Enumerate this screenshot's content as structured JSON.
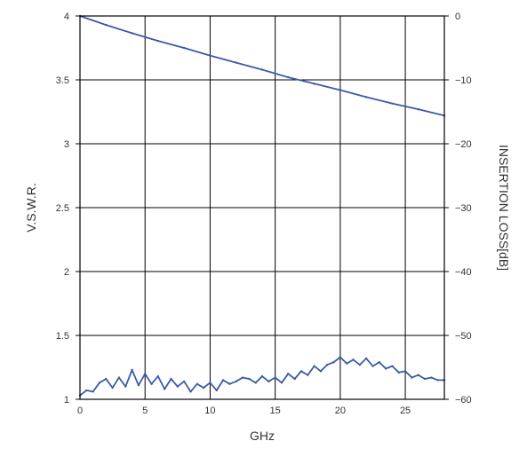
{
  "chart_data": {
    "type": "line",
    "xlabel": "GHz",
    "ylabel_left": "V.S.W.R.",
    "ylabel_right": "INSERTION LOSS[dB]",
    "xlim": [
      0,
      28
    ],
    "ylim_left": [
      1,
      4
    ],
    "ylim_right": [
      -60,
      0
    ],
    "x_ticks": [
      "0",
      "5",
      "10",
      "15",
      "20",
      "25"
    ],
    "y_left_ticks": [
      "1",
      "1.5",
      "2",
      "2.5",
      "3",
      "3.5",
      "4"
    ],
    "y_right_ticks": [
      "-60",
      "-50",
      "-40",
      "-30",
      "-20",
      "-10",
      "0"
    ],
    "grid": true,
    "line_color": "#3b5ba8",
    "series": [
      {
        "axis": "right",
        "x": [
          0,
          2,
          4,
          6,
          8,
          10,
          12,
          14,
          16,
          18,
          20,
          22,
          24,
          26,
          28
        ],
        "values": [
          0,
          -1.4,
          -2.7,
          -3.9,
          -5.0,
          -6.2,
          -7.3,
          -8.4,
          -9.6,
          -10.6,
          -11.6,
          -12.7,
          -13.7,
          -14.6,
          -15.6
        ]
      },
      {
        "axis": "left",
        "x": [
          0,
          0.5,
          1,
          1.5,
          2,
          2.5,
          3,
          3.5,
          4,
          4.5,
          5,
          5.5,
          6,
          6.5,
          7,
          7.5,
          8,
          8.5,
          9,
          9.5,
          10,
          10.5,
          11,
          11.5,
          12,
          12.5,
          13,
          13.5,
          14,
          14.5,
          15,
          15.5,
          16,
          16.5,
          17,
          17.5,
          18,
          18.5,
          19,
          19.5,
          20,
          20.5,
          21,
          21.5,
          22,
          22.5,
          23,
          23.5,
          24,
          24.5,
          25,
          25.5,
          26,
          26.5,
          27,
          27.5,
          28
        ],
        "values": [
          1.03,
          1.07,
          1.06,
          1.13,
          1.16,
          1.09,
          1.17,
          1.1,
          1.23,
          1.11,
          1.2,
          1.12,
          1.18,
          1.08,
          1.16,
          1.1,
          1.14,
          1.06,
          1.12,
          1.09,
          1.13,
          1.07,
          1.15,
          1.12,
          1.14,
          1.17,
          1.16,
          1.13,
          1.18,
          1.14,
          1.17,
          1.13,
          1.2,
          1.16,
          1.22,
          1.19,
          1.26,
          1.22,
          1.27,
          1.29,
          1.33,
          1.28,
          1.31,
          1.27,
          1.32,
          1.26,
          1.29,
          1.24,
          1.26,
          1.21,
          1.22,
          1.17,
          1.19,
          1.16,
          1.17,
          1.15,
          1.15
        ]
      }
    ]
  }
}
